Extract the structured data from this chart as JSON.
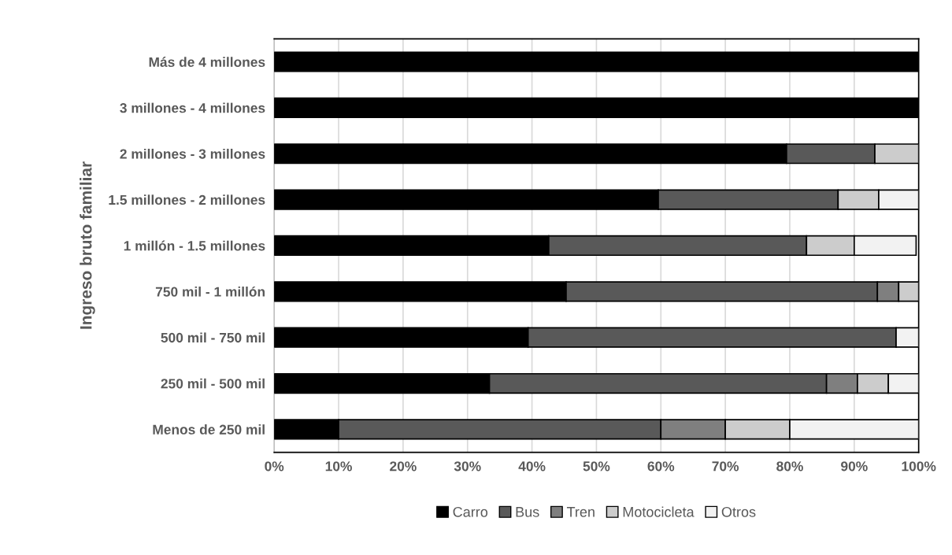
{
  "chart_data": {
    "type": "bar",
    "orientation": "horizontal",
    "stacked": true,
    "ylabel": "Ingreso bruto familiar",
    "categories": [
      "Más de 4 millones",
      "3 millones - 4 millones",
      "2 millones - 3 millones",
      "1.5 millones - 2 millones",
      "1 millón - 1.5 millones",
      "750 mil - 1 millón",
      "500 mil - 750 mil",
      "250 mil - 500 mil",
      "Menos de 250 mil"
    ],
    "series": [
      {
        "name": "Carro",
        "color": "#000000",
        "values": [
          100,
          100,
          79.5,
          59.6,
          42.6,
          45.3,
          39.4,
          33.4,
          10
        ]
      },
      {
        "name": "Bus",
        "color": "#595959",
        "values": [
          null,
          null,
          13.7,
          27.9,
          40.0,
          48.3,
          57.1,
          52.3,
          50
        ]
      },
      {
        "name": "Tren",
        "color": "#7f7f7f",
        "values": [
          null,
          null,
          null,
          null,
          null,
          3.3,
          null,
          4.8,
          10
        ]
      },
      {
        "name": "Motocicleta",
        "color": "#cccccc",
        "values": [
          null,
          null,
          6.8,
          6.3,
          7.4,
          3.1,
          null,
          4.8,
          10
        ]
      },
      {
        "name": "Otros",
        "color": "#f2f2f2",
        "values": [
          null,
          null,
          null,
          6.2,
          9.6,
          null,
          3.5,
          4.7,
          20
        ]
      }
    ],
    "xlim": [
      0,
      100
    ],
    "xticks": [
      {
        "value": 0,
        "label": "0%"
      },
      {
        "value": 10,
        "label": "10%"
      },
      {
        "value": 20,
        "label": "20%"
      },
      {
        "value": 30,
        "label": "30%"
      },
      {
        "value": 40,
        "label": "40%"
      },
      {
        "value": 50,
        "label": "50%"
      },
      {
        "value": 60,
        "label": "60%"
      },
      {
        "value": 70,
        "label": "70%"
      },
      {
        "value": 80,
        "label": "80%"
      },
      {
        "value": 90,
        "label": "90%"
      },
      {
        "value": 100,
        "label": "100%"
      }
    ],
    "grid": "x",
    "legend": "bottom"
  }
}
